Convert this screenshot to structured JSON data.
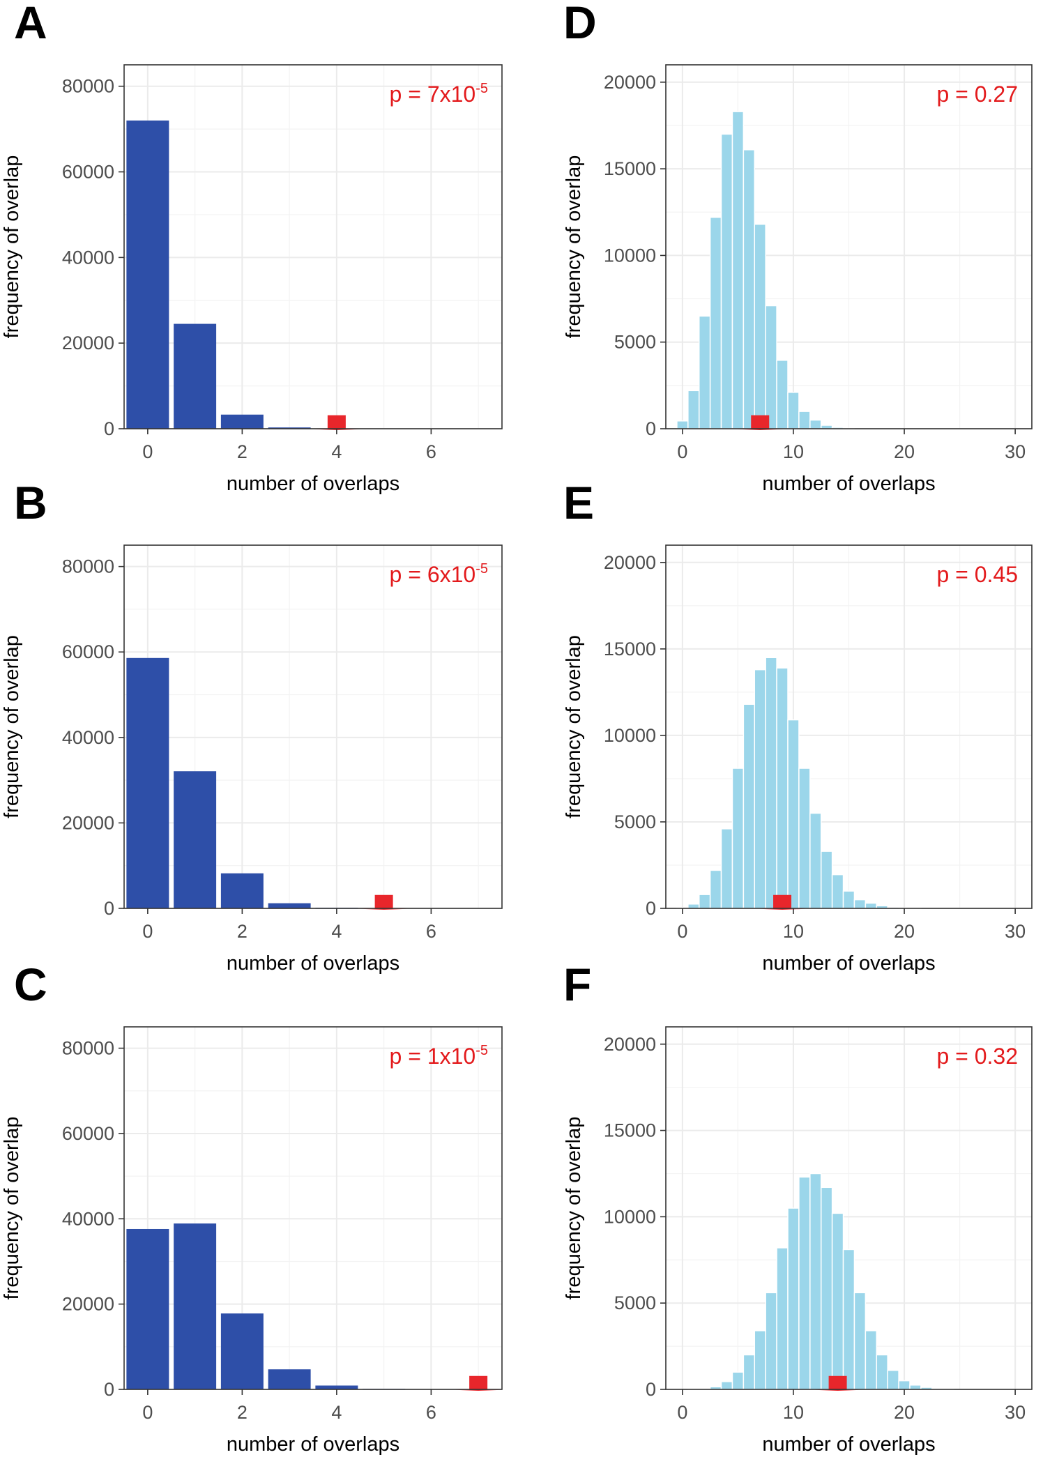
{
  "colors": {
    "dark_bar": "#2e4fa8",
    "light_bar": "#9bd6ea",
    "arrow": "#e8262b",
    "pvalue": "#e31a1c"
  },
  "chart_data": [
    {
      "id": "A",
      "type": "bar",
      "letter": "A",
      "xlabel": "number of overlaps",
      "ylabel": "frequency of overlap",
      "xlim": [
        -0.5,
        7.5
      ],
      "ylim": [
        0,
        85000
      ],
      "x_breaks": [
        0,
        2,
        4,
        6
      ],
      "x_labels": [
        "0",
        "2",
        "4",
        "6"
      ],
      "y_breaks": [
        0,
        20000,
        40000,
        60000,
        80000
      ],
      "y_labels": [
        "0",
        "20000",
        "40000",
        "60000",
        "80000"
      ],
      "bin_width": 1,
      "x": [
        0,
        1,
        2,
        3,
        4,
        5
      ],
      "values": [
        72000,
        24500,
        3300,
        300,
        20,
        2
      ],
      "observed": 4,
      "pvalue": {
        "prefix": "p = ",
        "mantissa": "7x10",
        "exponent": "-5"
      }
    },
    {
      "id": "B",
      "type": "bar",
      "letter": "B",
      "xlabel": "number of overlaps",
      "ylabel": "frequency of overlap",
      "xlim": [
        -0.5,
        7.5
      ],
      "ylim": [
        0,
        85000
      ],
      "x_breaks": [
        0,
        2,
        4,
        6
      ],
      "x_labels": [
        "0",
        "2",
        "4",
        "6"
      ],
      "y_breaks": [
        0,
        20000,
        40000,
        60000,
        80000
      ],
      "y_labels": [
        "0",
        "20000",
        "40000",
        "60000",
        "80000"
      ],
      "bin_width": 1,
      "x": [
        0,
        1,
        2,
        3,
        4,
        5
      ],
      "values": [
        58600,
        32100,
        8200,
        1200,
        150,
        10
      ],
      "observed": 5,
      "pvalue": {
        "prefix": "p = ",
        "mantissa": "6x10",
        "exponent": "-5"
      }
    },
    {
      "id": "C",
      "type": "bar",
      "letter": "C",
      "xlabel": "number of overlaps",
      "ylabel": "frequency of overlap",
      "xlim": [
        -0.5,
        7.5
      ],
      "ylim": [
        0,
        85000
      ],
      "x_breaks": [
        0,
        2,
        4,
        6
      ],
      "x_labels": [
        "0",
        "2",
        "4",
        "6"
      ],
      "y_breaks": [
        0,
        20000,
        40000,
        60000,
        80000
      ],
      "y_labels": [
        "0",
        "20000",
        "40000",
        "60000",
        "80000"
      ],
      "bin_width": 1,
      "x": [
        0,
        1,
        2,
        3,
        4,
        5,
        6
      ],
      "values": [
        37600,
        38900,
        17800,
        4700,
        900,
        130,
        20
      ],
      "observed": 7,
      "pvalue": {
        "prefix": "p = ",
        "mantissa": "1x10",
        "exponent": "-5"
      }
    },
    {
      "id": "D",
      "type": "bar",
      "letter": "D",
      "xlabel": "number of overlaps",
      "ylabel": "frequency of overlap",
      "xlim": [
        -1.5,
        31.5
      ],
      "ylim": [
        0,
        21000
      ],
      "x_breaks": [
        0,
        10,
        20,
        30
      ],
      "x_labels": [
        "0",
        "10",
        "20",
        "30"
      ],
      "y_breaks": [
        0,
        5000,
        10000,
        15000,
        20000
      ],
      "y_labels": [
        "0",
        "5000",
        "10000",
        "15000",
        "20000"
      ],
      "bin_width": 1,
      "x": [
        0,
        1,
        2,
        3,
        4,
        5,
        6,
        7,
        8,
        9,
        10,
        11,
        12,
        13,
        14,
        15
      ],
      "values": [
        450,
        2200,
        6500,
        12200,
        17000,
        18300,
        16100,
        11800,
        7100,
        3950,
        2100,
        1000,
        500,
        200,
        80,
        30
      ],
      "observed": 7,
      "pvalue": {
        "text": "p = 0.27"
      }
    },
    {
      "id": "E",
      "type": "bar",
      "letter": "E",
      "xlabel": "number of overlaps",
      "ylabel": "frequency of overlap",
      "xlim": [
        -1.5,
        31.5
      ],
      "ylim": [
        0,
        21000
      ],
      "x_breaks": [
        0,
        10,
        20,
        30
      ],
      "x_labels": [
        "0",
        "10",
        "20",
        "30"
      ],
      "y_breaks": [
        0,
        5000,
        10000,
        15000,
        20000
      ],
      "y_labels": [
        "0",
        "5000",
        "10000",
        "15000",
        "20000"
      ],
      "bin_width": 1,
      "x": [
        0,
        1,
        2,
        3,
        4,
        5,
        6,
        7,
        8,
        9,
        10,
        11,
        12,
        13,
        14,
        15,
        16,
        17,
        18,
        19,
        20,
        21
      ],
      "values": [
        50,
        250,
        800,
        2200,
        4600,
        8100,
        11800,
        13800,
        14500,
        13900,
        10900,
        8100,
        5500,
        3300,
        1950,
        1000,
        500,
        300,
        150,
        70,
        30,
        10
      ],
      "observed": 9,
      "pvalue": {
        "text": "p = 0.45"
      }
    },
    {
      "id": "F",
      "type": "bar",
      "letter": "F",
      "xlabel": "number of overlaps",
      "ylabel": "frequency of overlap",
      "xlim": [
        -1.5,
        31.5
      ],
      "ylim": [
        0,
        21000
      ],
      "x_breaks": [
        0,
        10,
        20,
        30
      ],
      "x_labels": [
        "0",
        "10",
        "20",
        "30"
      ],
      "y_breaks": [
        0,
        5000,
        10000,
        15000,
        20000
      ],
      "y_labels": [
        "0",
        "5000",
        "10000",
        "15000",
        "20000"
      ],
      "bin_width": 1,
      "x": [
        1,
        2,
        3,
        4,
        5,
        6,
        7,
        8,
        9,
        10,
        11,
        12,
        13,
        14,
        15,
        16,
        17,
        18,
        19,
        20,
        21,
        22,
        23,
        24
      ],
      "values": [
        20,
        60,
        150,
        450,
        1000,
        2000,
        3400,
        5600,
        8200,
        10500,
        12300,
        12500,
        11700,
        10200,
        8100,
        5600,
        3400,
        2000,
        1100,
        500,
        250,
        120,
        50,
        20
      ],
      "observed": 14,
      "pvalue": {
        "text": "p = 0.32"
      }
    }
  ]
}
